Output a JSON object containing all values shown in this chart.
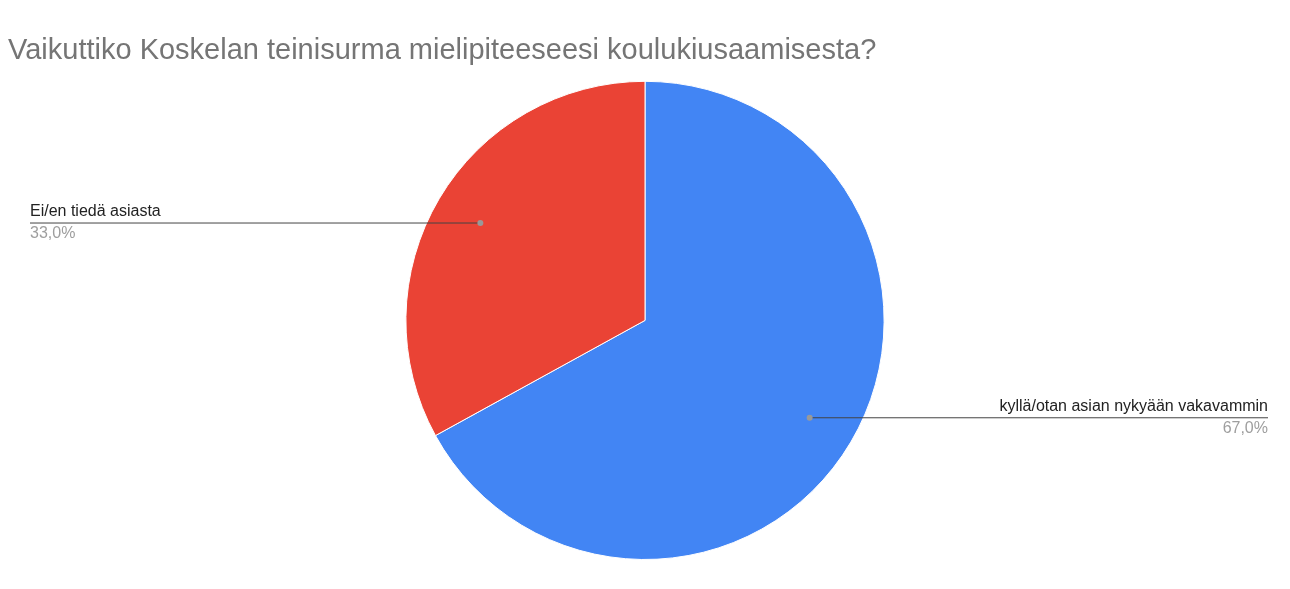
{
  "chart_data": {
    "type": "pie",
    "title": "Vaikuttiko Koskelan teinisurma mielipiteeseesi koulukiusaamisesta?",
    "categories": [
      "kyllä/otan asian nykyään vakavammin",
      "Ei/en tiedä asiasta"
    ],
    "values": [
      67,
      33
    ],
    "colors": [
      "#4285f4",
      "#ea4335"
    ],
    "value_labels": [
      "67,0%",
      "33,0%"
    ]
  }
}
